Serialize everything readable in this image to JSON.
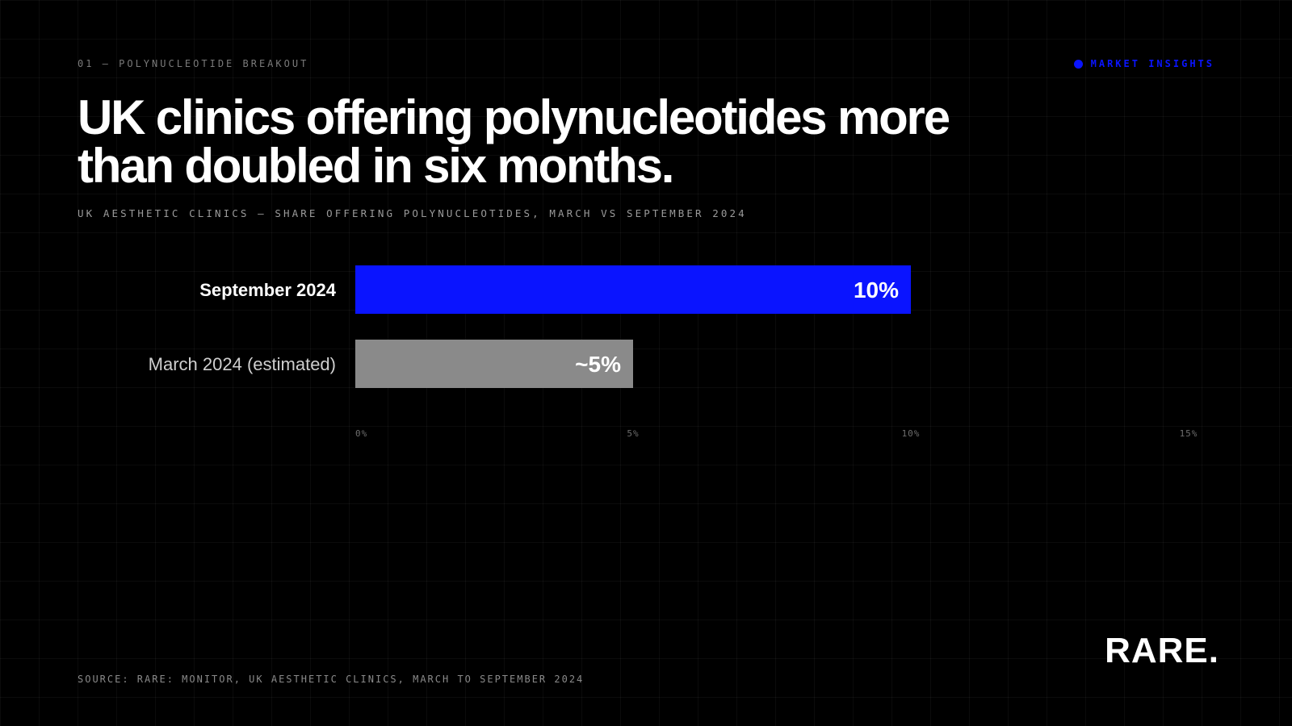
{
  "header": {
    "eyebrow": "01 — POLYNUCLEOTIDE BREAKOUT",
    "tag": "MARKET INSIGHTS",
    "title": "UK clinics offering polynucleotides more than doubled in six months.",
    "subtitle": "UK AESTHETIC CLINICS — SHARE OFFERING POLYNUCLEOTIDES, MARCH VS SEPTEMBER 2024"
  },
  "chart_data": {
    "type": "bar",
    "orientation": "horizontal",
    "categories": [
      "September 2024",
      "March 2024 (estimated)"
    ],
    "values": [
      10,
      5
    ],
    "value_labels": [
      "10%",
      "~5%"
    ],
    "bar_colors": [
      "#0a14ff",
      "#8a8a8a"
    ],
    "xlim": [
      0,
      15
    ],
    "x_ticks": [
      0,
      5,
      10,
      15
    ],
    "x_tick_labels": [
      "0%",
      "5%",
      "10%",
      "15%"
    ],
    "grid": true
  },
  "footer": {
    "source": "SOURCE: RARE: MONITOR, UK AESTHETIC CLINICS, MARCH TO SEPTEMBER 2024",
    "logo": "RARE."
  },
  "colors": {
    "accent": "#0a14ff",
    "background": "#000000"
  }
}
